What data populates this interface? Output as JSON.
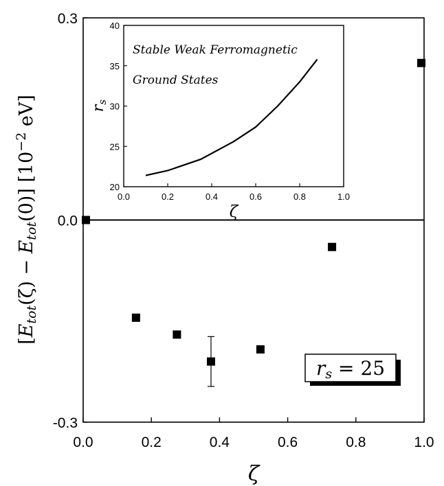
{
  "chart_data": [
    {
      "type": "scatter",
      "title": "",
      "xlabel": "ζ",
      "ylabel": "[E_tot(ζ) − E_tot(0)] [10^−2 eV]",
      "ylabel_parts": {
        "open": "[",
        "e1": "E",
        "sub1": "tot",
        "mid1": "(ζ) − ",
        "e2": "E",
        "sub2": "tot",
        "mid2": "(0)]  [10",
        "sup": "−2",
        "unit": " eV]"
      },
      "xlim": [
        0.0,
        1.0
      ],
      "ylim": [
        -0.3,
        0.3
      ],
      "x_ticks": [
        "0.0",
        "0.2",
        "0.4",
        "0.6",
        "0.8",
        "1.0"
      ],
      "y_ticks": [
        "-0.3",
        "0.0",
        "0.3"
      ],
      "zero_line": true,
      "points": [
        {
          "x": 0.0,
          "y": 0.0
        },
        {
          "x": 0.155,
          "y": -0.145
        },
        {
          "x": 0.275,
          "y": -0.17
        },
        {
          "x": 0.375,
          "y": -0.21,
          "err": 0.037
        },
        {
          "x": 0.52,
          "y": -0.192
        },
        {
          "x": 0.73,
          "y": -0.04
        },
        {
          "x": 1.0,
          "y": 0.233
        }
      ],
      "annotation": {
        "lhs": "r",
        "sub": "s",
        "rhs": " = 25"
      }
    },
    {
      "type": "line",
      "title": "",
      "xlabel": "ζ",
      "ylabel": "r_s",
      "ylabel_parts": {
        "main": "r",
        "sub": "s"
      },
      "xlim": [
        0.0,
        1.0
      ],
      "ylim": [
        20,
        40
      ],
      "x_ticks": [
        "0.0",
        "0.2",
        "0.4",
        "0.6",
        "0.8",
        "1.0"
      ],
      "y_ticks": [
        "20",
        "25",
        "30",
        "35",
        "40"
      ],
      "annotation_lines": [
        "Stable Weak Ferromagnetic",
        "Ground States"
      ],
      "x": [
        0.1,
        0.2,
        0.35,
        0.5,
        0.6,
        0.7,
        0.8,
        0.88
      ],
      "y": [
        21.4,
        22.0,
        23.4,
        25.6,
        27.4,
        30.0,
        33.0,
        35.8
      ]
    }
  ]
}
